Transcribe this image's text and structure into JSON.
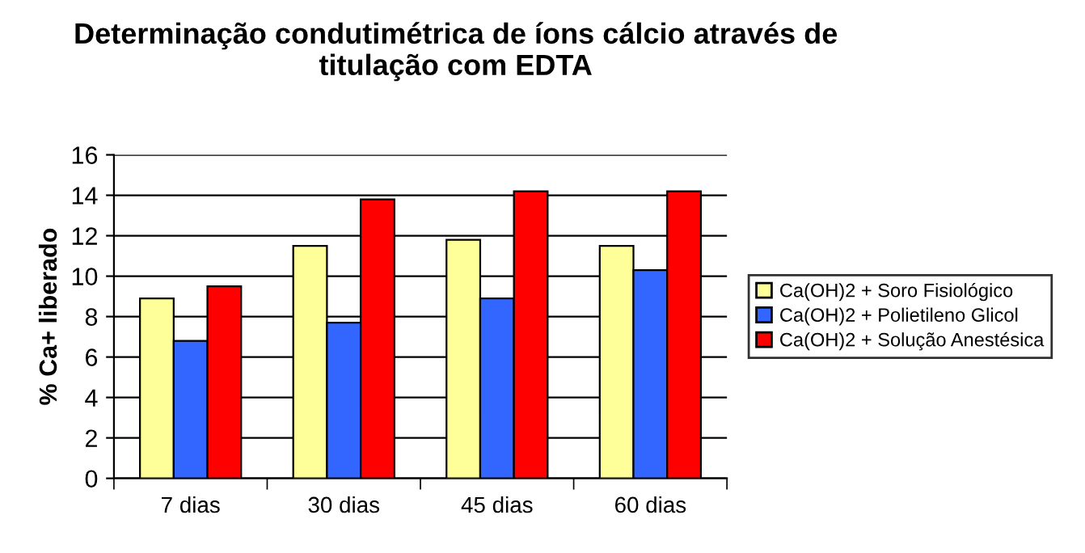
{
  "chart_data": {
    "type": "bar",
    "title": "Determinação condutimétrica de íons cálcio através de\ntitulação com EDTA",
    "ylabel": "% Ca+ liberado",
    "categories": [
      "7 dias",
      "30 dias",
      "45 dias",
      "60 dias"
    ],
    "series": [
      {
        "name": "Ca(OH)2 + Soro Fisiológico",
        "color": "#ffff99",
        "values": [
          8.9,
          11.5,
          11.8,
          11.5
        ]
      },
      {
        "name": "Ca(OH)2 + Polietileno Glicol",
        "color": "#3366ff",
        "values": [
          6.8,
          7.7,
          8.9,
          10.3
        ]
      },
      {
        "name": "Ca(OH)2 + Solução Anestésica",
        "color": "#ff0000",
        "values": [
          9.5,
          13.8,
          14.2,
          14.2
        ]
      }
    ],
    "ylim": [
      0,
      16
    ],
    "yticks": [
      0,
      2,
      4,
      6,
      8,
      10,
      12,
      14,
      16
    ],
    "grid": "y",
    "legend": "right"
  }
}
